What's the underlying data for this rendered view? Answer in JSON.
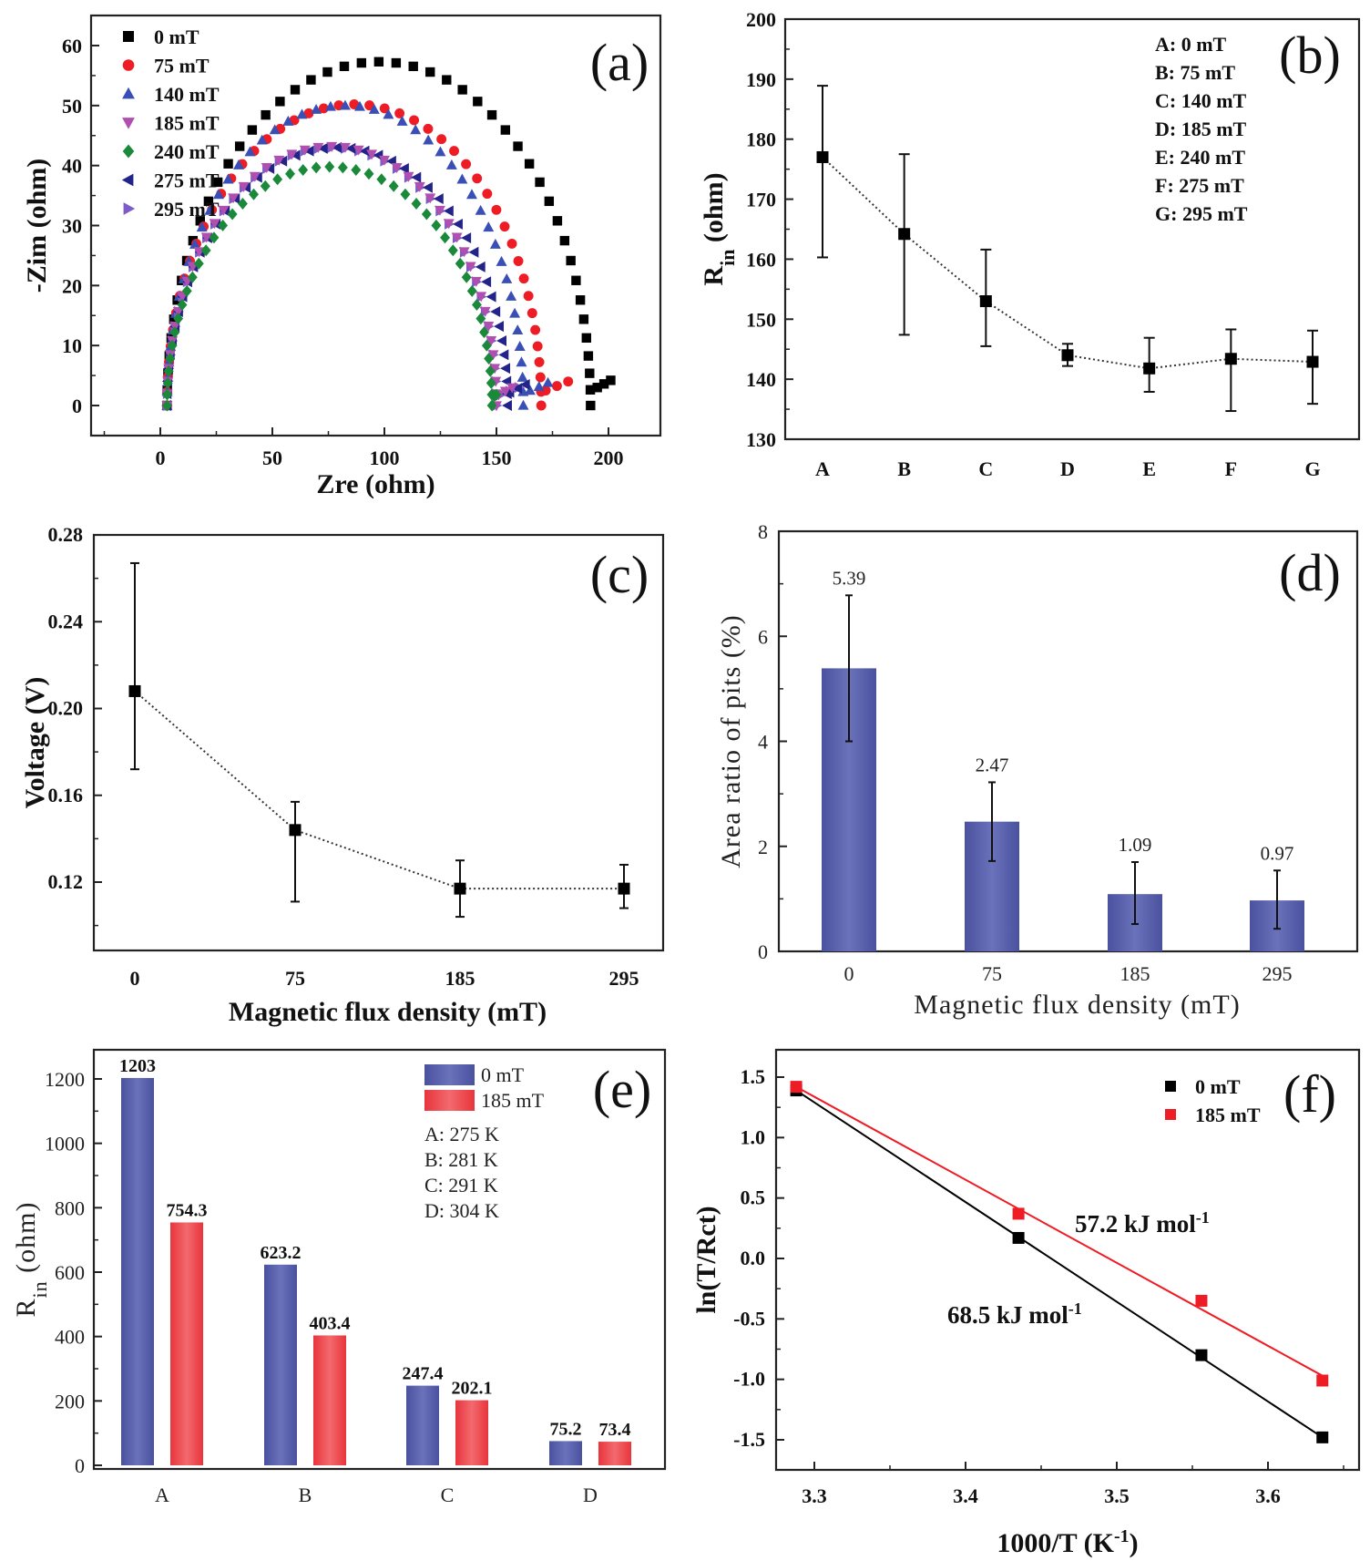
{
  "chart_data": [
    {
      "id": "a",
      "type": "scatter",
      "panel_label": "(a)",
      "xlabel": "Zre (ohm)",
      "ylabel": "-Zim (ohm)",
      "xlim": [
        -30,
        225
      ],
      "ylim": [
        -5,
        65
      ],
      "xticks": [
        0,
        50,
        100,
        150,
        200
      ],
      "yticks": [
        0,
        10,
        20,
        30,
        40,
        50,
        60
      ],
      "legend_position": "top-left",
      "series": [
        {
          "name": "0 mT",
          "color": "#000000",
          "marker": "square",
          "Rct": 192,
          "peak": 57.3,
          "tail_end": [
            201,
            4.2
          ],
          "tail_min": [
            195,
            3.0
          ]
        },
        {
          "name": "75 mT",
          "color": "#ee1c24",
          "marker": "circle",
          "Rct": 170,
          "peak": 50.2,
          "tail_end": [
            182,
            4.0
          ],
          "tail_min": [
            172,
            2.5
          ]
        },
        {
          "name": "140 mT",
          "color": "#3a4fb5",
          "marker": "triangle-up",
          "Rct": 162,
          "peak": 50.0,
          "tail_end": [
            173,
            3.8
          ],
          "tail_min": [
            165,
            2.5
          ]
        },
        {
          "name": "185 mT",
          "color": "#b04fb0",
          "marker": "triangle-down",
          "Rct": 150,
          "peak": 43.2,
          "tail_end": [
            157,
            3.0
          ],
          "tail_min": [
            151,
            1.8
          ]
        },
        {
          "name": "240 mT",
          "color": "#1a8a3a",
          "marker": "diamond",
          "Rct": 148,
          "peak": 39.8,
          "tail_end": [
            150,
            1.8
          ],
          "tail_min": [
            149,
            1.6
          ]
        },
        {
          "name": "275 mT",
          "color": "#23248a",
          "marker": "triangle-left",
          "Rct": 155,
          "peak": 43.0,
          "tail_end": [
            163,
            3.5
          ],
          "tail_min": [
            156,
            2.2
          ]
        },
        {
          "name": "295 mT",
          "color": "#7d5cc8",
          "marker": "triangle-right",
          "Rct": 150,
          "peak": 43.0,
          "tail_end": [
            160,
            3.0
          ],
          "tail_min": [
            152,
            1.8
          ]
        }
      ]
    },
    {
      "id": "b",
      "type": "line",
      "panel_label": "(b)",
      "xlabel": "",
      "ylabel": "R",
      "ylabel_sub": "in",
      "ylabel_suffix": " (ohm)",
      "categories": [
        "A",
        "B",
        "C",
        "D",
        "E",
        "F",
        "G"
      ],
      "values": [
        177,
        164.2,
        153,
        144,
        141.8,
        143.4,
        142.9
      ],
      "error_low": [
        160.3,
        147.4,
        145.5,
        142.2,
        137.9,
        134.7,
        135.9
      ],
      "error_high": [
        188.9,
        177.5,
        161.6,
        145.9,
        146.9,
        148.3,
        148.1
      ],
      "ylim": [
        130,
        200
      ],
      "yticks": [
        130,
        140,
        150,
        160,
        170,
        180,
        190,
        200
      ],
      "legend_position": "top-right",
      "legend_entries": [
        "A:  0 mT",
        "B: 75 mT",
        "C: 140 mT",
        "D: 185 mT",
        "E: 240 mT",
        "F: 275 mT",
        "G: 295 mT"
      ]
    },
    {
      "id": "c",
      "type": "line",
      "panel_label": "(c)",
      "xlabel": "Magnetic flux density (mT)",
      "ylabel": "Voltage (V)",
      "categories": [
        "0",
        "75",
        "185",
        "295"
      ],
      "values": [
        0.208,
        0.144,
        0.117,
        0.117
      ],
      "error_low": [
        0.172,
        0.111,
        0.104,
        0.108
      ],
      "error_high": [
        0.267,
        0.157,
        0.13,
        0.128
      ],
      "ylim": [
        0.09,
        0.28
      ],
      "yticks": [
        0.12,
        0.16,
        0.2,
        0.24,
        0.28
      ],
      "ytick_labels": [
        "0.12",
        "0.16",
        "0.20",
        "0.24",
        "0.28"
      ]
    },
    {
      "id": "d",
      "type": "bar",
      "panel_label": "(d)",
      "xlabel": "Magnetic flux density (mT)",
      "ylabel": "Area ratio of pits (%)",
      "categories": [
        "0",
        "75",
        "185",
        "295"
      ],
      "values": [
        5.39,
        2.47,
        1.09,
        0.97
      ],
      "value_labels": [
        "5.39",
        "2.47",
        "1.09",
        "0.97"
      ],
      "error_low": [
        4.0,
        1.72,
        0.52,
        0.43
      ],
      "error_high": [
        6.78,
        3.22,
        1.7,
        1.54
      ],
      "ylim": [
        0,
        8
      ],
      "yticks": [
        0,
        2,
        4,
        6,
        8
      ],
      "bar_color": "#5a62ac"
    },
    {
      "id": "e",
      "type": "bar",
      "panel_label": "(e)",
      "xlabel": "",
      "ylabel": "R",
      "ylabel_sub": "in",
      "ylabel_suffix": " (ohm)",
      "categories": [
        "A",
        "B",
        "C",
        "D"
      ],
      "series": [
        {
          "name": "0 mT",
          "color": "#5a62ac",
          "values": [
            1203,
            623.2,
            247.4,
            75.2
          ],
          "value_labels": [
            "1203",
            "623.2",
            "247.4",
            "75.2"
          ]
        },
        {
          "name": "185 mT",
          "color": "#ee4a50",
          "values": [
            754.3,
            403.4,
            202.1,
            73.4
          ],
          "value_labels": [
            "754.3",
            "403.4",
            "202.1",
            "73.4"
          ]
        }
      ],
      "ylim": [
        0,
        1300
      ],
      "yticks": [
        0,
        200,
        400,
        600,
        800,
        1000,
        1200
      ],
      "legend_position": "top-right",
      "legend_notes": [
        "A: 275 K",
        "B: 281 K",
        "C: 291 K",
        "D: 304 K"
      ]
    },
    {
      "id": "f",
      "type": "scatter",
      "panel_label": "(f)",
      "xlabel": "1000/T (K",
      "xlabel_sup": "-1",
      "xlabel_suffix": ")",
      "ylabel": "ln(T/Rct)",
      "xlim": [
        3.25,
        3.67
      ],
      "ylim": [
        -1.75,
        1.75
      ],
      "xticks": [
        3.3,
        3.4,
        3.5,
        3.6
      ],
      "yticks": [
        -1.5,
        -1.0,
        -0.5,
        0.0,
        0.5,
        1.0,
        1.5
      ],
      "ytick_labels": [
        "-1.5",
        "-1.0",
        "-0.5",
        "0.0",
        "0.5",
        "1.0",
        "1.5"
      ],
      "legend_position": "top-right",
      "series": [
        {
          "name": "0 mT",
          "color": "#000000",
          "x": [
            3.288,
            3.435,
            3.556,
            3.636
          ],
          "y": [
            1.39,
            0.17,
            -0.8,
            -1.48
          ],
          "fit": [
            [
              3.288,
              1.39
            ],
            [
              3.636,
              -1.48
            ]
          ]
        },
        {
          "name": "185 mT",
          "color": "#ee1c24",
          "x": [
            3.288,
            3.435,
            3.556,
            3.636
          ],
          "y": [
            1.42,
            0.37,
            -0.35,
            -1.01
          ],
          "fit": [
            [
              3.288,
              1.42
            ],
            [
              3.636,
              -0.97
            ]
          ]
        }
      ],
      "annotations": [
        {
          "text": "57.2 kJ mol",
          "sup": "-1",
          "near_series": "185 mT"
        },
        {
          "text": "68.5 kJ mol",
          "sup": "-1",
          "near_series": "0 mT"
        }
      ]
    }
  ]
}
